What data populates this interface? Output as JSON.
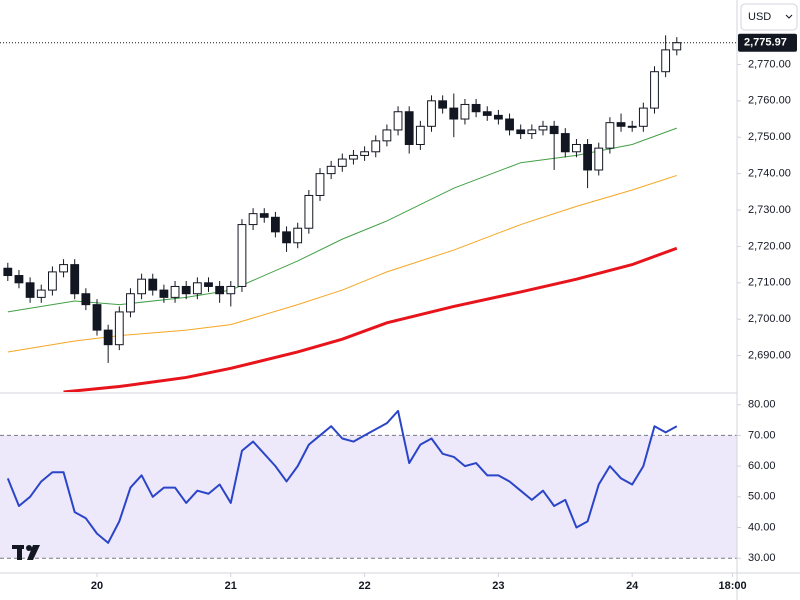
{
  "toolbar": {
    "currency": "USD"
  },
  "chart_data": [
    {
      "type": "candlestick",
      "x": [
        -16,
        -14,
        -12,
        -10,
        -8,
        -6,
        -4,
        -2,
        0,
        2,
        4,
        6,
        8,
        10,
        12,
        14,
        16,
        18,
        20,
        22,
        24,
        26,
        28,
        30,
        32,
        34,
        36,
        38,
        40,
        42,
        44,
        46,
        48,
        50,
        52,
        54,
        56,
        58,
        60,
        62,
        64,
        66,
        68,
        70,
        72,
        74,
        76,
        78,
        80,
        82,
        84,
        86,
        88,
        90,
        92,
        94,
        96,
        98,
        100,
        102,
        104
      ],
      "open": [
        2714,
        2712,
        2710,
        2706,
        2708,
        2713,
        2715,
        2707,
        2704,
        2697,
        2693,
        2702,
        2707,
        2711,
        2708,
        2706,
        2709,
        2707,
        2710,
        2709,
        2707,
        2709,
        2726,
        2729,
        2728,
        2724,
        2721,
        2725,
        2734,
        2740,
        2742,
        2744,
        2745,
        2746,
        2749,
        2752,
        2757,
        2748,
        2753,
        2760,
        2758,
        2755,
        2759,
        2757,
        2756,
        2755,
        2752,
        2751,
        2752,
        2753,
        2751,
        2746,
        2748,
        2741,
        2747,
        2754,
        2753,
        2753,
        2758,
        2768,
        2774
      ],
      "high": [
        2715.5,
        2713.5,
        2711.5,
        2709.5,
        2714.5,
        2716.5,
        2716.5,
        2708.5,
        2705.5,
        2698.5,
        2703.5,
        2708.5,
        2712.5,
        2712.5,
        2709.5,
        2710.5,
        2710.5,
        2711.5,
        2711.5,
        2710.5,
        2710.5,
        2727.5,
        2730.5,
        2730.5,
        2729.5,
        2725.5,
        2726.5,
        2735.5,
        2741.5,
        2743.5,
        2745.5,
        2746.5,
        2747.5,
        2750.5,
        2753.5,
        2758.5,
        2758.5,
        2754.5,
        2761.5,
        2761.5,
        2762,
        2760.5,
        2760.5,
        2758.5,
        2757.5,
        2756.5,
        2753.5,
        2753.5,
        2754.5,
        2754.5,
        2752.5,
        2749.5,
        2749.5,
        2748.5,
        2755.5,
        2756.5,
        2754.5,
        2759.5,
        2769.5,
        2778,
        2777.5
      ],
      "low": [
        2710.5,
        2708.5,
        2704.5,
        2704.5,
        2706.5,
        2711.5,
        2705.5,
        2702.5,
        2695.5,
        2688,
        2691.5,
        2700.5,
        2705.5,
        2706.5,
        2704.5,
        2704.5,
        2705.5,
        2705.5,
        2707.5,
        2704.5,
        2703.5,
        2707.5,
        2724.5,
        2726.5,
        2722.5,
        2718.5,
        2719.5,
        2723.5,
        2732.5,
        2738.5,
        2740.5,
        2742.5,
        2743.5,
        2744.5,
        2747.5,
        2750.5,
        2745.5,
        2746.5,
        2751.5,
        2756.5,
        2750,
        2753.5,
        2755.5,
        2754.5,
        2753.5,
        2750.5,
        2749.5,
        2749.5,
        2750.5,
        2741,
        2744.5,
        2744.5,
        2736,
        2739.5,
        2745.5,
        2751.5,
        2751.5,
        2751.5,
        2756.5,
        2766.5,
        2772.5
      ],
      "close": [
        2712,
        2710,
        2706,
        2708,
        2713,
        2715,
        2707,
        2704,
        2697,
        2693,
        2702,
        2707,
        2711,
        2708,
        2706,
        2709,
        2707,
        2710,
        2709,
        2707,
        2709,
        2726,
        2729,
        2728,
        2724,
        2721,
        2725,
        2734,
        2740,
        2742,
        2744,
        2745,
        2746,
        2749,
        2752,
        2757,
        2748,
        2753,
        2760,
        2758,
        2755,
        2759,
        2757,
        2756,
        2755,
        2752,
        2751,
        2752,
        2753,
        2751,
        2746,
        2748,
        2741,
        2747,
        2754,
        2753,
        2753,
        2758,
        2768,
        2774,
        2775.97
      ],
      "up_color": "#ffffff",
      "down_color": "#131722",
      "wick_color": "#131722",
      "lines": [
        {
          "color": "#43a047",
          "width": 1,
          "x": [
            -16,
            -4,
            4,
            16,
            24,
            36,
            44,
            52,
            64,
            76,
            86,
            96,
            104
          ],
          "values": [
            2702,
            2705,
            2704,
            2706,
            2708,
            2716,
            2722,
            2727,
            2736,
            2743,
            2745,
            2748,
            2752.5
          ]
        },
        {
          "color": "#f5a623",
          "width": 1,
          "x": [
            -16,
            -4,
            4,
            16,
            24,
            36,
            44,
            52,
            64,
            76,
            86,
            96,
            104
          ],
          "values": [
            2691,
            2694,
            2695.5,
            2697,
            2698.5,
            2704,
            2708,
            2713,
            2719,
            2726,
            2731,
            2735.5,
            2739.5
          ]
        },
        {
          "color": "#e8141b",
          "width": 3,
          "x": [
            -6,
            4,
            16,
            24,
            36,
            44,
            52,
            64,
            76,
            86,
            96,
            104
          ],
          "values": [
            2680,
            2681.5,
            2684,
            2686.5,
            2691,
            2694.5,
            2699,
            2703.5,
            2707.5,
            2711,
            2715,
            2719.5
          ]
        }
      ],
      "last_price": {
        "value": 2775.97,
        "label": "2,775.97"
      },
      "xlim": [
        -17.4,
        114.8
      ],
      "ylim": [
        2680,
        2787.7
      ],
      "yticks": [
        {
          "value": 2690,
          "label": "2,690.00"
        },
        {
          "value": 2700,
          "label": "2,700.00"
        },
        {
          "value": 2710,
          "label": "2,710.00"
        },
        {
          "value": 2720,
          "label": "2,720.00"
        },
        {
          "value": 2730,
          "label": "2,730.00"
        },
        {
          "value": 2740,
          "label": "2,740.00"
        },
        {
          "value": 2750,
          "label": "2,750.00"
        },
        {
          "value": 2760,
          "label": "2,760.00"
        },
        {
          "value": 2770,
          "label": "2,770.00"
        }
      ],
      "grid": false
    },
    {
      "type": "line",
      "x": [
        -16,
        -14,
        -12,
        -10,
        -8,
        -6,
        -4,
        -2,
        0,
        2,
        4,
        6,
        8,
        10,
        12,
        14,
        16,
        18,
        20,
        22,
        24,
        26,
        28,
        30,
        32,
        34,
        36,
        38,
        40,
        42,
        44,
        46,
        48,
        50,
        52,
        54,
        56,
        58,
        60,
        62,
        64,
        66,
        68,
        70,
        72,
        74,
        76,
        78,
        80,
        82,
        84,
        86,
        88,
        90,
        92,
        94,
        96,
        98,
        100,
        102,
        104
      ],
      "series": [
        {
          "color": "#2b45c9",
          "values": [
            56,
            47,
            50,
            55,
            58,
            58,
            45,
            43,
            38,
            35,
            42,
            53,
            57,
            50,
            53,
            53,
            48,
            52,
            51,
            54,
            48,
            65,
            68,
            64,
            60,
            55,
            60,
            67,
            70,
            73,
            69,
            68,
            70,
            72,
            74,
            78,
            61,
            67,
            69,
            64,
            63,
            60,
            61,
            57,
            57,
            55,
            52,
            49,
            52,
            47,
            49,
            40,
            42,
            54,
            60,
            56,
            54,
            60,
            73,
            71,
            73
          ]
        }
      ],
      "levels": [
        30,
        70
      ],
      "band_color": "#ede9fa",
      "xlim": [
        -17.4,
        114.8
      ],
      "ylim": [
        25.5,
        83.5
      ],
      "yticks": [
        {
          "value": 30,
          "label": "30.00"
        },
        {
          "value": 40,
          "label": "40.00"
        },
        {
          "value": 50,
          "label": "50.00"
        },
        {
          "value": 60,
          "label": "60.00"
        },
        {
          "value": 70,
          "label": "70.00"
        },
        {
          "value": 80,
          "label": "80.00"
        }
      ],
      "xticks": [
        {
          "value": 0,
          "label": "20"
        },
        {
          "value": 24,
          "label": "21"
        },
        {
          "value": 48,
          "label": "22"
        },
        {
          "value": 72,
          "label": "23"
        },
        {
          "value": 96,
          "label": "24"
        },
        {
          "value": 114,
          "label": "18:00"
        }
      ],
      "grid": false
    }
  ]
}
